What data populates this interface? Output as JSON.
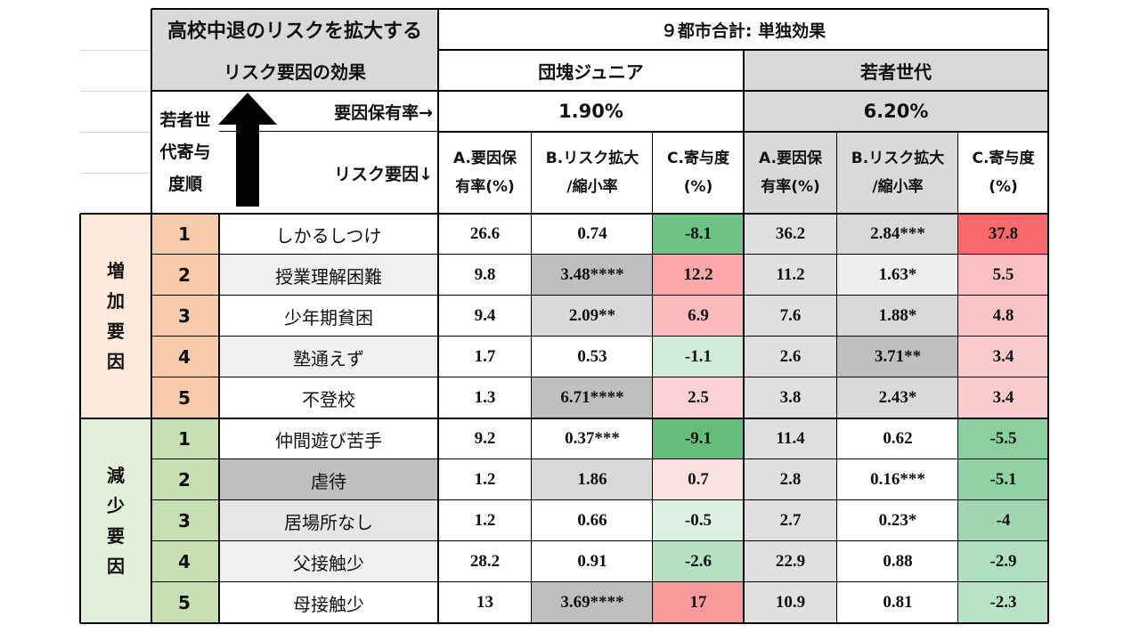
{
  "header": {
    "title_line1": "高校中退のリスクを拡大する",
    "title_line2": "リスク要因の効果",
    "scope": "９都市合計: 単独効果",
    "rank_header": [
      "若者世",
      "代寄与",
      "度順"
    ],
    "factor_rate_label": "要因保有率→",
    "risk_factor_label": "リスク要因↓",
    "arrow_icon": "up-arrow-icon"
  },
  "groups": [
    {
      "name": "団塊ジュニア",
      "rate": "1.90%",
      "columns": [
        [
          "A.要因保",
          "有率(%)"
        ],
        [
          "B.リスク拡大",
          "/縮小率"
        ],
        [
          "C.寄与度",
          "(%)"
        ]
      ]
    },
    {
      "name": "若者世代",
      "rate": "6.20%",
      "columns": [
        [
          "A.要因保",
          "有率(%)"
        ],
        [
          "B.リスク拡大",
          "/縮小率"
        ],
        [
          "C.寄与度",
          "(%)"
        ]
      ]
    }
  ],
  "sections": [
    {
      "label": [
        "増",
        "加",
        "要",
        "因"
      ],
      "color": "#f8cbad",
      "rows": [
        {
          "rank": "1",
          "factor": "しかるしつけ",
          "jr": [
            "26.6",
            "0.74",
            "-8.1"
          ],
          "young": [
            "36.2",
            "2.84***",
            "37.8"
          ]
        },
        {
          "rank": "2",
          "factor": "授業理解困難",
          "jr": [
            "9.8",
            "3.48****",
            "12.2"
          ],
          "young": [
            "11.2",
            "1.63*",
            "5.5"
          ]
        },
        {
          "rank": "3",
          "factor": "少年期貧困",
          "jr": [
            "9.4",
            "2.09**",
            "6.9"
          ],
          "young": [
            "7.6",
            "1.88*",
            "4.8"
          ]
        },
        {
          "rank": "4",
          "factor": "塾通えず",
          "jr": [
            "1.7",
            "0.53",
            "-1.1"
          ],
          "young": [
            "2.6",
            "3.71**",
            "3.4"
          ]
        },
        {
          "rank": "5",
          "factor": "不登校",
          "jr": [
            "1.3",
            "6.71****",
            "2.5"
          ],
          "young": [
            "3.8",
            "2.43*",
            "3.4"
          ]
        }
      ]
    },
    {
      "label": [
        "減",
        "少",
        "要",
        "因"
      ],
      "color": "#c6e0b4",
      "rows": [
        {
          "rank": "1",
          "factor": "仲間遊び苦手",
          "jr": [
            "9.2",
            "0.37***",
            "-9.1"
          ],
          "young": [
            "11.4",
            "0.62",
            "-5.5"
          ]
        },
        {
          "rank": "2",
          "factor": "虐待",
          "jr": [
            "1.2",
            "1.86",
            "0.7"
          ],
          "young": [
            "2.8",
            "0.16***",
            "-5.1"
          ]
        },
        {
          "rank": "3",
          "factor": "居場所なし",
          "jr": [
            "1.2",
            "0.66",
            "-0.5"
          ],
          "young": [
            "2.7",
            "0.23*",
            "-4"
          ]
        },
        {
          "rank": "4",
          "factor": "父接触少",
          "jr": [
            "28.2",
            "0.91",
            "-2.6"
          ],
          "young": [
            "22.9",
            "0.88",
            "-2.9"
          ]
        },
        {
          "rank": "5",
          "factor": "母接触少",
          "jr": [
            "13",
            "3.69****",
            "17"
          ],
          "young": [
            "10.9",
            "0.81",
            "-2.3"
          ]
        }
      ]
    }
  ],
  "colors": {
    "header_gray": "#d9d9d9",
    "light_gray": "#f0f0f0",
    "dark_gray": "#bfbfbf",
    "increase_bg": "#fde9d9",
    "increase_rank": "#f8cbad",
    "decrease_bg": "#e2efd9",
    "decrease_rank": "#c6e0b4"
  }
}
